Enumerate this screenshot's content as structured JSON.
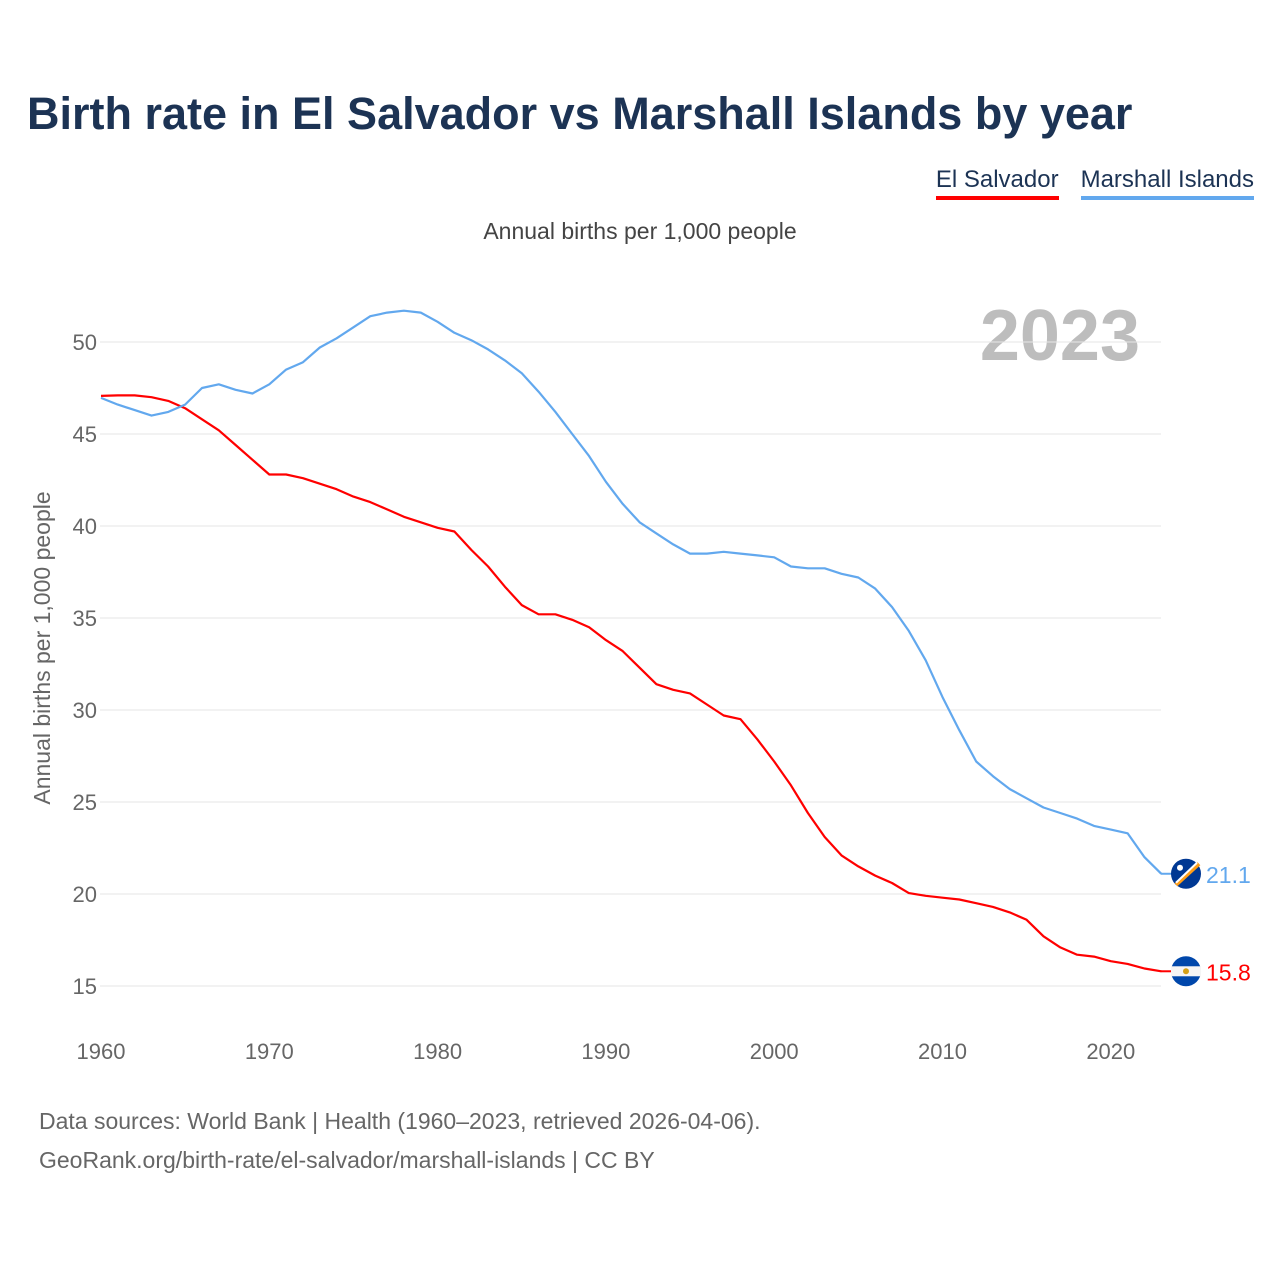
{
  "title": "Birth rate in El Salvador vs Marshall Islands by year",
  "legend": [
    {
      "label": "El Salvador",
      "color": "#ff0000"
    },
    {
      "label": "Marshall Islands",
      "color": "#62a8ee"
    }
  ],
  "subtitle": "Annual births per 1,000 people",
  "year_badge": "2023",
  "source_line1": "Data sources: World Bank | Health (1960–2023, retrieved 2026-04-06).",
  "source_line2": "GeoRank.org/birth-rate/el-salvador/marshall-islands | CC BY",
  "chart_data": {
    "type": "line",
    "title": "Birth rate in El Salvador vs Marshall Islands by year",
    "ylabel": "Annual births per 1,000 people",
    "xlabel": "",
    "xlim": [
      1960,
      2023
    ],
    "ylim": [
      13,
      53
    ],
    "yticks": [
      15,
      20,
      25,
      30,
      35,
      40,
      45,
      50
    ],
    "xticks": [
      1960,
      1970,
      1980,
      1990,
      2000,
      2010,
      2020
    ],
    "grid": true,
    "legend_position": "top-right",
    "x_start": 1960,
    "series": [
      {
        "name": "El Salvador",
        "color": "#ff0000",
        "end_label": "15.8",
        "values": [
          47.07,
          47.1,
          47.1,
          47.0,
          46.8,
          46.4,
          45.8,
          45.2,
          44.4,
          43.6,
          42.8,
          42.8,
          42.6,
          42.3,
          42.0,
          41.6,
          41.3,
          40.9,
          40.5,
          40.2,
          39.9,
          39.7,
          38.7,
          37.8,
          36.7,
          35.7,
          35.2,
          35.2,
          34.9,
          34.5,
          33.8,
          33.2,
          32.3,
          31.4,
          31.1,
          30.9,
          30.3,
          29.7,
          29.5,
          28.4,
          27.2,
          25.9,
          24.4,
          23.1,
          22.1,
          21.5,
          21.0,
          20.6,
          20.05,
          19.9,
          19.8,
          19.7,
          19.5,
          19.3,
          19.0,
          18.6,
          17.7,
          17.1,
          16.7,
          16.6,
          16.35,
          16.2,
          15.95,
          15.8
        ]
      },
      {
        "name": "Marshall Islands",
        "color": "#62a8ee",
        "end_label": "21.1",
        "values": [
          46.96,
          46.6,
          46.3,
          46.0,
          46.2,
          46.6,
          47.5,
          47.7,
          47.4,
          47.2,
          47.7,
          48.5,
          48.9,
          49.7,
          50.2,
          50.8,
          51.4,
          51.6,
          51.7,
          51.6,
          51.1,
          50.5,
          50.1,
          49.6,
          49.0,
          48.3,
          47.3,
          46.2,
          45.0,
          43.8,
          42.4,
          41.2,
          40.2,
          39.6,
          39.0,
          38.5,
          38.5,
          38.6,
          38.5,
          38.4,
          38.3,
          37.8,
          37.7,
          37.7,
          37.4,
          37.2,
          36.6,
          35.6,
          34.3,
          32.7,
          30.7,
          28.9,
          27.2,
          26.4,
          25.7,
          25.2,
          24.7,
          24.4,
          24.1,
          23.7,
          23.5,
          23.3,
          22.0,
          21.1
        ]
      }
    ]
  }
}
